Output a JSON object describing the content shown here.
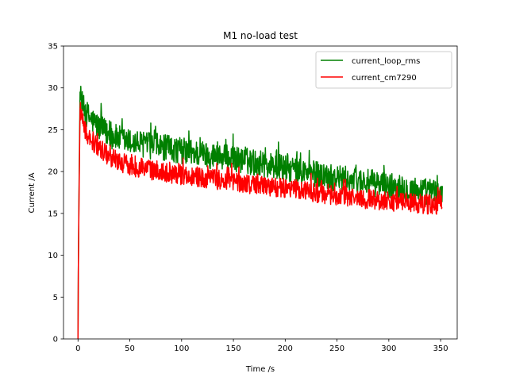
{
  "chart_data": {
    "type": "line",
    "title": "M1 no-load test",
    "xlabel": "Time /s",
    "ylabel": "Current /A",
    "xlim": [
      -14,
      366
    ],
    "ylim": [
      0,
      35
    ],
    "xticks": [
      0,
      50,
      100,
      150,
      200,
      250,
      300,
      350
    ],
    "yticks": [
      0,
      5,
      10,
      15,
      20,
      25,
      30,
      35
    ],
    "grid": false,
    "legend_position": "top-right",
    "x_end": 352,
    "series": [
      {
        "name": "current_loop_rms",
        "color": "#008000",
        "noise_amplitude": 1.6,
        "points": [
          [
            0,
            0
          ],
          [
            0.3,
            8
          ],
          [
            1,
            18
          ],
          [
            2,
            29.5
          ],
          [
            3,
            28.6
          ],
          [
            5,
            27.6
          ],
          [
            10,
            26.6
          ],
          [
            20,
            25.3
          ],
          [
            30,
            24.4
          ],
          [
            40,
            23.9
          ],
          [
            50,
            23.5
          ],
          [
            75,
            23.0
          ],
          [
            100,
            22.5
          ],
          [
            125,
            22.0
          ],
          [
            150,
            21.5
          ],
          [
            175,
            21.0
          ],
          [
            200,
            20.4
          ],
          [
            225,
            19.8
          ],
          [
            250,
            19.2
          ],
          [
            275,
            18.8
          ],
          [
            300,
            18.3
          ],
          [
            325,
            17.8
          ],
          [
            352,
            17.4
          ]
        ]
      },
      {
        "name": "current_cm7290",
        "color": "#ff0000",
        "noise_amplitude": 1.2,
        "points": [
          [
            0,
            0
          ],
          [
            0.3,
            8
          ],
          [
            1,
            17
          ],
          [
            2,
            27.6
          ],
          [
            3,
            26.6
          ],
          [
            5,
            25.6
          ],
          [
            10,
            24.3
          ],
          [
            20,
            22.8
          ],
          [
            30,
            21.9
          ],
          [
            40,
            21.2
          ],
          [
            50,
            20.7
          ],
          [
            75,
            20.1
          ],
          [
            100,
            19.6
          ],
          [
            125,
            19.2
          ],
          [
            150,
            18.8
          ],
          [
            175,
            18.4
          ],
          [
            200,
            18.0
          ],
          [
            225,
            17.6
          ],
          [
            250,
            17.1
          ],
          [
            275,
            16.8
          ],
          [
            300,
            16.5
          ],
          [
            325,
            16.2
          ],
          [
            352,
            16.0
          ]
        ]
      }
    ]
  }
}
